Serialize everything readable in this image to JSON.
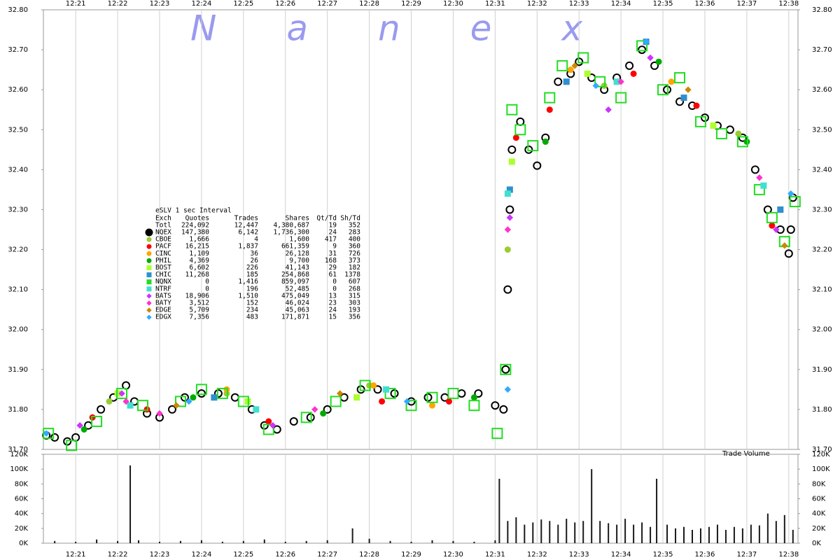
{
  "chart_data": [
    {
      "type": "scatter",
      "watermark": "Nanex",
      "grid": "x",
      "xlim": [
        740.23,
        758.22
      ],
      "xticks": [
        {
          "value": 741,
          "label": "12:21"
        },
        {
          "value": 742,
          "label": "12:22"
        },
        {
          "value": 743,
          "label": "12:23"
        },
        {
          "value": 744,
          "label": "12:24"
        },
        {
          "value": 745,
          "label": "12:25"
        },
        {
          "value": 746,
          "label": "12:26"
        },
        {
          "value": 747,
          "label": "12:27"
        },
        {
          "value": 748,
          "label": "12:28"
        },
        {
          "value": 749,
          "label": "12:29"
        },
        {
          "value": 750,
          "label": "12:30"
        },
        {
          "value": 751,
          "label": "12:31"
        },
        {
          "value": 752,
          "label": "12:32"
        },
        {
          "value": 753,
          "label": "12:33"
        },
        {
          "value": 754,
          "label": "12:34"
        },
        {
          "value": 755,
          "label": "12:35"
        },
        {
          "value": 756,
          "label": "12:36"
        },
        {
          "value": 757,
          "label": "12:37"
        },
        {
          "value": 758,
          "label": "12:38"
        }
      ],
      "ylim": [
        31.7,
        32.8
      ],
      "yticks": [
        {
          "value": 31.7,
          "label": "31.70"
        },
        {
          "value": 31.8,
          "label": "31.80"
        },
        {
          "value": 31.9,
          "label": "31.90"
        },
        {
          "value": 32.0,
          "label": "32.00"
        },
        {
          "value": 32.1,
          "label": "32.10"
        },
        {
          "value": 32.2,
          "label": "32.20"
        },
        {
          "value": 32.3,
          "label": "32.30"
        },
        {
          "value": 32.4,
          "label": "32.40"
        },
        {
          "value": 32.5,
          "label": "32.50"
        },
        {
          "value": 32.6,
          "label": "32.60"
        },
        {
          "value": 32.7,
          "label": "32.70"
        },
        {
          "value": 32.8,
          "label": "32.80"
        }
      ],
      "series": [
        {
          "name": "NQEX",
          "color": "#000000",
          "marker": "circle",
          "hollow": true,
          "x": [
            740.3,
            740.5,
            740.8,
            741.0,
            741.3,
            741.6,
            741.9,
            742.2,
            742.4,
            742.7,
            743.0,
            743.3,
            743.6,
            744.0,
            744.4,
            744.8,
            745.2,
            745.5,
            745.8,
            746.2,
            746.6,
            747.0,
            747.4,
            747.8,
            748.2,
            748.6,
            749.0,
            749.4,
            749.8,
            750.2,
            750.6,
            751.0,
            751.2,
            751.25,
            751.3,
            751.35,
            751.4,
            751.6,
            751.8,
            752.0,
            752.2,
            752.5,
            752.8,
            753.0,
            753.3,
            753.6,
            753.9,
            754.2,
            754.5,
            754.8,
            755.1,
            755.4,
            755.7,
            756.0,
            756.3,
            756.6,
            756.9,
            757.2,
            757.5,
            757.8,
            758.0,
            758.05,
            758.1
          ],
          "values": [
            31.735,
            31.73,
            31.72,
            31.73,
            31.76,
            31.8,
            31.83,
            31.86,
            31.82,
            31.79,
            31.78,
            31.8,
            31.83,
            31.84,
            31.84,
            31.83,
            31.8,
            31.76,
            31.75,
            31.77,
            31.78,
            31.8,
            31.83,
            31.85,
            31.85,
            31.84,
            31.82,
            31.83,
            31.83,
            31.84,
            31.84,
            31.81,
            31.8,
            31.9,
            32.1,
            32.3,
            32.45,
            32.52,
            32.45,
            32.41,
            32.48,
            32.62,
            32.64,
            32.67,
            32.63,
            32.6,
            32.63,
            32.66,
            32.7,
            32.66,
            32.6,
            32.57,
            32.56,
            32.53,
            32.51,
            32.5,
            32.48,
            32.4,
            32.3,
            32.25,
            32.19,
            32.25,
            32.33
          ]
        },
        {
          "name": "CBOE",
          "color": "#9acd32",
          "marker": "circle",
          "hollow": false,
          "x": [
            741.8,
            744.6,
            748.0,
            751.3,
            753.6,
            756.8
          ],
          "values": [
            31.82,
            31.84,
            31.86,
            32.2,
            32.61,
            32.49
          ]
        },
        {
          "name": "PACF",
          "color": "#ff0000",
          "marker": "circle",
          "hollow": false,
          "x": [
            741.4,
            742.7,
            745.6,
            748.3,
            749.9,
            751.5,
            752.3,
            754.3,
            755.8,
            757.6
          ],
          "values": [
            31.78,
            31.8,
            31.77,
            31.82,
            31.82,
            32.48,
            32.55,
            32.64,
            32.56,
            32.26
          ]
        },
        {
          "name": "CINC",
          "color": "#ffa500",
          "marker": "circle",
          "hollow": false,
          "x": [
            744.6,
            748.1,
            749.5,
            752.8,
            755.2
          ],
          "values": [
            31.85,
            31.86,
            31.81,
            32.65,
            32.62
          ]
        },
        {
          "name": "PHIL",
          "color": "#00aa00",
          "marker": "circle",
          "hollow": false,
          "x": [
            741.2,
            743.8,
            746.9,
            750.5,
            752.2,
            754.9,
            757.0
          ],
          "values": [
            31.75,
            31.83,
            31.79,
            31.83,
            32.47,
            32.67,
            32.47
          ]
        },
        {
          "name": "BOST",
          "color": "#adff2f",
          "marker": "square",
          "hollow": false,
          "x": [
            742.0,
            745.1,
            747.7,
            751.4,
            753.2,
            756.2
          ],
          "values": [
            31.84,
            31.82,
            31.83,
            32.42,
            32.64,
            32.51
          ]
        },
        {
          "name": "CHIC",
          "color": "#2f8fd0",
          "marker": "square",
          "hollow": false,
          "x": [
            744.3,
            751.35,
            752.7,
            754.6,
            755.5,
            757.8
          ],
          "values": [
            31.83,
            32.35,
            32.62,
            32.72,
            32.58,
            32.3
          ]
        },
        {
          "name": "NQNX",
          "color": "#22dd22",
          "marker": "square",
          "hollow": true,
          "x": [
            740.35,
            740.9,
            741.5,
            742.1,
            742.6,
            743.5,
            744.0,
            744.5,
            745.0,
            745.6,
            746.5,
            747.2,
            747.9,
            748.5,
            749.0,
            749.5,
            750.0,
            750.5,
            751.05,
            751.25,
            751.4,
            751.6,
            751.9,
            752.3,
            752.6,
            753.1,
            753.5,
            754.0,
            754.5,
            755.0,
            755.4,
            755.9,
            756.4,
            756.9,
            757.3,
            757.6,
            757.9,
            758.15
          ],
          "values": [
            31.74,
            31.71,
            31.77,
            31.84,
            31.81,
            31.82,
            31.85,
            31.84,
            31.82,
            31.75,
            31.78,
            31.82,
            31.86,
            31.84,
            31.81,
            31.83,
            31.84,
            31.81,
            31.74,
            31.9,
            32.55,
            32.5,
            32.46,
            32.58,
            32.66,
            32.68,
            32.62,
            32.58,
            32.71,
            32.6,
            32.63,
            32.52,
            32.49,
            32.47,
            32.35,
            32.28,
            32.22,
            32.32
          ]
        },
        {
          "name": "NTRF",
          "color": "#40e0d0",
          "marker": "square",
          "hollow": false,
          "x": [
            742.3,
            745.3,
            748.4,
            751.3,
            753.9,
            757.4
          ],
          "values": [
            31.81,
            31.8,
            31.85,
            32.34,
            32.62,
            32.36
          ]
        },
        {
          "name": "BATS",
          "color": "#cc33ff",
          "marker": "diamond",
          "hollow": false,
          "x": [
            741.1,
            742.1,
            745.7,
            751.35,
            753.7,
            754.7,
            757.7
          ],
          "values": [
            31.76,
            31.84,
            31.76,
            32.28,
            32.55,
            32.68,
            32.25
          ]
        },
        {
          "name": "BATY",
          "color": "#ff33cc",
          "marker": "diamond",
          "hollow": false,
          "x": [
            742.2,
            743.0,
            746.7,
            751.3,
            754.0,
            757.3
          ],
          "values": [
            31.82,
            31.79,
            31.8,
            32.25,
            32.62,
            32.38
          ]
        },
        {
          "name": "EDGE",
          "color": "#cc8800",
          "marker": "diamond",
          "hollow": false,
          "x": [
            743.4,
            747.3,
            752.9,
            755.6,
            757.9
          ],
          "values": [
            31.81,
            31.84,
            32.66,
            32.6,
            32.21
          ]
        },
        {
          "name": "EDGX",
          "color": "#33aaff",
          "marker": "diamond",
          "hollow": false,
          "x": [
            740.3,
            743.7,
            748.9,
            751.3,
            753.4,
            754.6,
            758.05
          ],
          "values": [
            31.74,
            31.82,
            31.82,
            31.85,
            32.61,
            32.72,
            32.34
          ]
        }
      ],
      "stats": {
        "title": "eSLV 1 sec Interval",
        "columns": [
          "Exch",
          "Quotes",
          "Trades",
          "Shares",
          "Qt/Td",
          "Sh/Td"
        ],
        "total": [
          "Totl",
          "224,092",
          "12,447",
          "4,380,687",
          "19",
          "352"
        ],
        "rows": [
          [
            "147,380",
            "6,142",
            "1,736,300",
            "24",
            "283"
          ],
          [
            "1,666",
            "4",
            "1,600",
            "417",
            "400"
          ],
          [
            "16,215",
            "1,837",
            "661,359",
            "9",
            "360"
          ],
          [
            "1,109",
            "36",
            "26,128",
            "31",
            "726"
          ],
          [
            "4,369",
            "26",
            "9,700",
            "168",
            "373"
          ],
          [
            "6,602",
            "226",
            "41,143",
            "29",
            "182"
          ],
          [
            "11,268",
            "185",
            "254,868",
            "61",
            "1378"
          ],
          [
            "0",
            "1,416",
            "859,097",
            "0",
            "607"
          ],
          [
            "0",
            "196",
            "52,485",
            "0",
            "268"
          ],
          [
            "18,906",
            "1,510",
            "475,049",
            "13",
            "315"
          ],
          [
            "3,512",
            "152",
            "46,024",
            "23",
            "303"
          ],
          [
            "5,709",
            "234",
            "45,063",
            "24",
            "193"
          ],
          [
            "7,356",
            "483",
            "171,871",
            "15",
            "356"
          ]
        ]
      }
    },
    {
      "type": "bar",
      "title": "Trade Volume",
      "color": "#1a1a1a",
      "grid": "x",
      "xlim": [
        740.23,
        758.22
      ],
      "xticks": [
        {
          "value": 741,
          "label": "12:21"
        },
        {
          "value": 742,
          "label": "12:22"
        },
        {
          "value": 743,
          "label": "12:23"
        },
        {
          "value": 744,
          "label": "12:24"
        },
        {
          "value": 745,
          "label": "12:25"
        },
        {
          "value": 746,
          "label": "12:26"
        },
        {
          "value": 747,
          "label": "12:27"
        },
        {
          "value": 748,
          "label": "12:28"
        },
        {
          "value": 749,
          "label": "12:29"
        },
        {
          "value": 750,
          "label": "12:30"
        },
        {
          "value": 751,
          "label": "12:31"
        },
        {
          "value": 752,
          "label": "12:32"
        },
        {
          "value": 753,
          "label": "12:33"
        },
        {
          "value": 754,
          "label": "12:34"
        },
        {
          "value": 755,
          "label": "12:35"
        },
        {
          "value": 756,
          "label": "12:36"
        },
        {
          "value": 757,
          "label": "12:37"
        },
        {
          "value": 758,
          "label": "12:38"
        }
      ],
      "ylim": [
        0,
        120000
      ],
      "yticks": [
        {
          "value": 0,
          "label": "0K"
        },
        {
          "value": 20000,
          "label": "20K"
        },
        {
          "value": 40000,
          "label": "40K"
        },
        {
          "value": 60000,
          "label": "60K"
        },
        {
          "value": 80000,
          "label": "80K"
        },
        {
          "value": 100000,
          "label": "100K"
        },
        {
          "value": 120000,
          "label": "120K"
        }
      ],
      "x": [
        740.5,
        741.0,
        741.5,
        742.0,
        742.3,
        742.5,
        743.0,
        743.5,
        744.0,
        744.5,
        745.0,
        745.5,
        746.0,
        746.5,
        747.0,
        747.6,
        748.0,
        748.5,
        749.0,
        749.5,
        750.0,
        750.5,
        751.0,
        751.1,
        751.3,
        751.5,
        751.7,
        751.9,
        752.1,
        752.3,
        752.5,
        752.7,
        752.9,
        753.1,
        753.3,
        753.5,
        753.7,
        753.9,
        754.1,
        754.3,
        754.5,
        754.7,
        754.85,
        755.1,
        755.3,
        755.5,
        755.7,
        755.9,
        756.1,
        756.3,
        756.5,
        756.7,
        756.9,
        757.1,
        757.3,
        757.5,
        757.7,
        757.9,
        758.1
      ],
      "values": [
        3000,
        2000,
        5000,
        3000,
        105000,
        4000,
        2000,
        3000,
        4000,
        2000,
        3000,
        5000,
        2000,
        3000,
        4000,
        20000,
        6000,
        3000,
        2000,
        4000,
        3000,
        2000,
        4000,
        87000,
        30000,
        35000,
        25000,
        28000,
        32000,
        30000,
        25000,
        33000,
        28000,
        30000,
        100000,
        30000,
        27000,
        25000,
        33000,
        25000,
        28000,
        22000,
        87000,
        25000,
        20000,
        22000,
        18000,
        20000,
        22000,
        25000,
        18000,
        22000,
        20000,
        25000,
        24000,
        40000,
        30000,
        38000,
        18000
      ]
    }
  ]
}
